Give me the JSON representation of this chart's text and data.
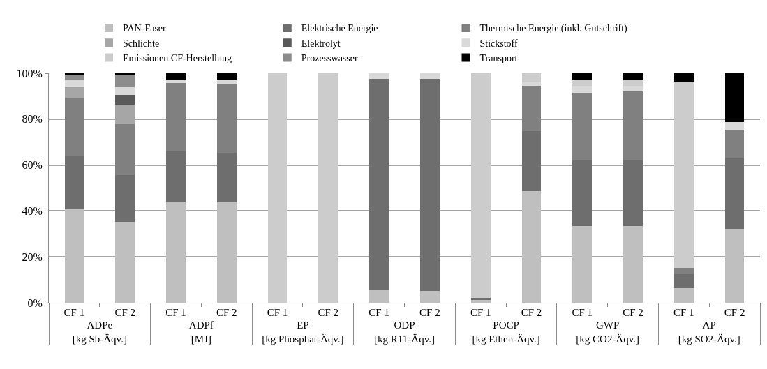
{
  "chart_data": {
    "type": "bar",
    "stacked": true,
    "legend": "top",
    "grid": "y",
    "categories": [
      "CF 1",
      "CF 2",
      "CF 1",
      "CF 2",
      "CF 1",
      "CF 2",
      "CF 1",
      "CF 2",
      "CF 1",
      "CF 2",
      "CF 1",
      "CF 2",
      "CF 1",
      "CF 2"
    ],
    "annotations": [
      "ADPe\n[kg Sb-Äqv.]",
      "ADPf\n[MJ]",
      "EP\n[kg Phosphat-Äqv.]",
      "ODP\n[kg R11-Äqv.]",
      "POCP\n[kg Ethen-Äqv.]",
      "GWP\n[kg CO2-Äqv.]",
      "AP\n[kg SO2-Äqv.]"
    ],
    "ylim": [
      0,
      100
    ],
    "yticks": [
      {
        "value": 0,
        "label": "0%"
      },
      {
        "value": 20,
        "label": "20%"
      },
      {
        "value": 40,
        "label": "40%"
      },
      {
        "value": 60,
        "label": "60%"
      },
      {
        "value": 80,
        "label": "80%"
      },
      {
        "value": 100,
        "label": "100%"
      }
    ],
    "series": [
      {
        "name": "PAN-Faser",
        "color": "#bfbfbf",
        "values": [
          40.8,
          35.3,
          44.1,
          43.7,
          null,
          null,
          5.5,
          5.3,
          1.3,
          48.5,
          33.3,
          33.3,
          6.5,
          32.3
        ]
      },
      {
        "name": "Elektrische Energie",
        "color": "#6e6e6e",
        "values": [
          23.0,
          20.3,
          22.0,
          21.8,
          null,
          null,
          92.0,
          92.2,
          0.7,
          26.3,
          28.8,
          28.8,
          6.1,
          30.7
        ]
      },
      {
        "name": "Thermische Energie (inkl. Gutschrift)",
        "color": "#808080",
        "values": [
          25.5,
          22.2,
          29.7,
          29.8,
          null,
          null,
          null,
          null,
          null,
          19.7,
          29.5,
          29.9,
          2.5,
          12.5
        ]
      },
      {
        "name": "Schlichte",
        "color": "#a6a6a6",
        "values": [
          4.5,
          8.5,
          null,
          null,
          null,
          null,
          null,
          null,
          null,
          null,
          null,
          null,
          null,
          null
        ]
      },
      {
        "name": "Elektrolyt",
        "color": "#595959",
        "values": [
          null,
          4.3,
          null,
          null,
          null,
          null,
          null,
          null,
          null,
          null,
          null,
          null,
          null,
          null
        ]
      },
      {
        "name": "Stickstoff",
        "color": "#d9d9d9",
        "values": [
          3.5,
          3.2,
          1.4,
          1.6,
          null,
          null,
          2.5,
          2.5,
          null,
          1.5,
          2.5,
          2.2,
          null,
          3.3
        ]
      },
      {
        "name": "Emissionen CF-Herstellung",
        "color": "#cccccc",
        "values": [
          null,
          null,
          null,
          null,
          100,
          100,
          null,
          null,
          98.0,
          4.0,
          2.9,
          2.8,
          81.2,
          null
        ]
      },
      {
        "name": "Prozesswasser",
        "color": "#8c8c8c",
        "values": [
          2.2,
          5.7,
          null,
          null,
          null,
          null,
          null,
          null,
          null,
          null,
          null,
          null,
          null,
          null
        ]
      },
      {
        "name": "Transport",
        "color": "#000000",
        "values": [
          0.5,
          0.5,
          2.8,
          3.1,
          null,
          null,
          null,
          null,
          null,
          null,
          3.0,
          3.0,
          3.7,
          21.2
        ]
      }
    ]
  }
}
